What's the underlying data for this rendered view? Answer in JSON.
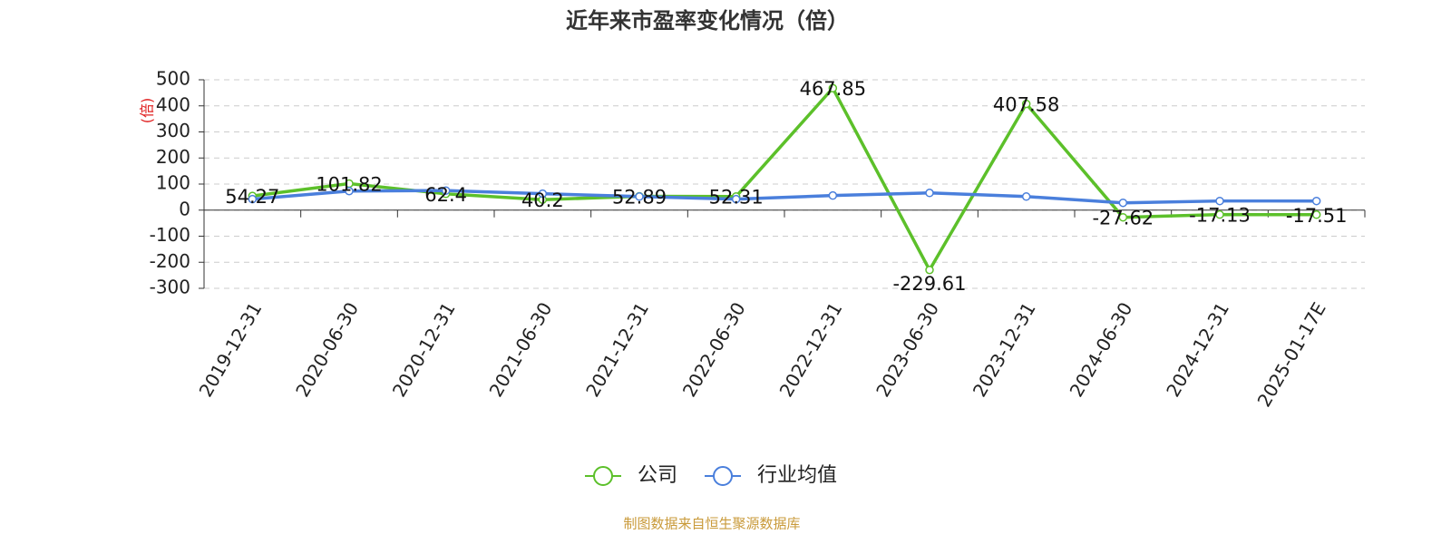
{
  "chart_data": {
    "type": "line",
    "title": "近年来市盈率变化情况（倍）",
    "y_label": "(倍)",
    "source": "制图数据来自恒生聚源数据库",
    "categories": [
      "2019-12-31",
      "2020-06-30",
      "2020-12-31",
      "2021-06-30",
      "2021-12-31",
      "2022-06-30",
      "2022-12-31",
      "2023-06-30",
      "2023-12-31",
      "2024-06-30",
      "2024-12-31",
      "2025-01-17E"
    ],
    "series": [
      {
        "name": "公司",
        "color": "#5cc02a",
        "values": [
          54.27,
          101.82,
          62.4,
          40.2,
          52.89,
          52.31,
          467.85,
          -229.61,
          407.58,
          -27.62,
          -17.13,
          -17.51
        ],
        "labels": true
      },
      {
        "name": "行业均值",
        "color": "#4a7fdc",
        "values": [
          42,
          73,
          75,
          63,
          52,
          42,
          56,
          66,
          52,
          28,
          35,
          35
        ]
      }
    ],
    "ylim": [
      -300,
      500
    ],
    "yticks": [
      -300,
      -200,
      -100,
      0,
      100,
      200,
      300,
      400,
      500
    ],
    "grid": true
  }
}
